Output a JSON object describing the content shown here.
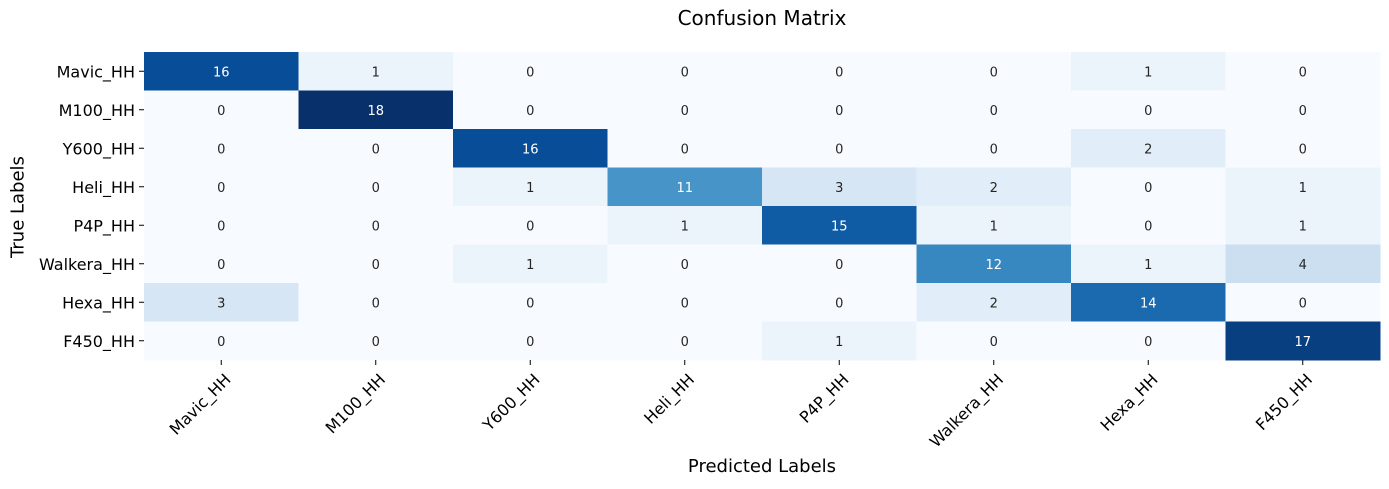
{
  "chart_data": {
    "type": "heatmap",
    "title": "Confusion Matrix",
    "xlabel": "Predicted Labels",
    "ylabel": "True Labels",
    "row_labels": [
      "Mavic_HH",
      "M100_HH",
      "Y600_HH",
      "Heli_HH",
      "P4P_HH",
      "Walkera_HH",
      "Hexa_HH",
      "F450_HH"
    ],
    "col_labels": [
      "Mavic_HH",
      "M100_HH",
      "Y600_HH",
      "Heli_HH",
      "P4P_HH",
      "Walkera_HH",
      "Hexa_HH",
      "F450_HH"
    ],
    "values": [
      [
        16,
        1,
        0,
        0,
        0,
        0,
        1,
        0
      ],
      [
        0,
        18,
        0,
        0,
        0,
        0,
        0,
        0
      ],
      [
        0,
        0,
        16,
        0,
        0,
        0,
        2,
        0
      ],
      [
        0,
        0,
        1,
        11,
        3,
        2,
        0,
        1
      ],
      [
        0,
        0,
        0,
        1,
        15,
        1,
        0,
        1
      ],
      [
        0,
        0,
        1,
        0,
        0,
        12,
        1,
        4
      ],
      [
        3,
        0,
        0,
        0,
        0,
        2,
        14,
        0
      ],
      [
        0,
        0,
        0,
        0,
        1,
        0,
        0,
        17
      ]
    ],
    "colormap": "Blues",
    "value_range": [
      0,
      18
    ],
    "colorbar": false
  }
}
